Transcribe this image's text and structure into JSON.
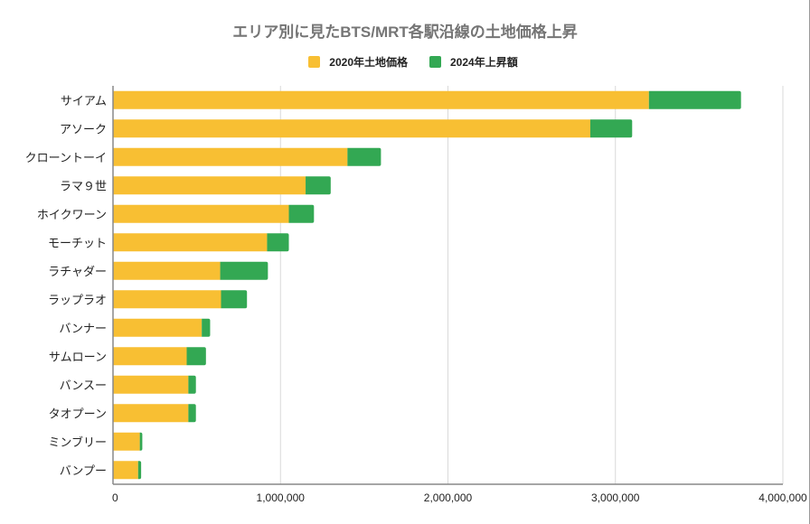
{
  "colors": {
    "series_2020": "#F8BF33",
    "series_increase": "#33A853",
    "title": "#757575",
    "grid": "#d9d9d9",
    "axis": "#888888"
  },
  "chart_data": {
    "type": "bar",
    "orientation": "horizontal",
    "stacked": true,
    "title": "エリア別に見たBTS/MRT各駅沿線の土地価格上昇",
    "xlabel": "",
    "ylabel": "",
    "legend_position": "top",
    "grid": true,
    "xlim": [
      0,
      4000000
    ],
    "x_ticks": [
      0,
      1000000,
      2000000,
      3000000,
      4000000
    ],
    "x_tick_labels": [
      "0",
      "1,000,000",
      "2,000,000",
      "3,000,000",
      "4,000,000"
    ],
    "categories": [
      "サイアム",
      "アソーク",
      "クローントーイ",
      "ラマ９世",
      "ホイクワーン",
      "モーチット",
      "ラチャダー",
      "ラップラオ",
      "バンナー",
      "サムローン",
      "バンスー",
      "タオプーン",
      "ミンブリー",
      "バンプー"
    ],
    "series": [
      {
        "name": "2020年土地価格",
        "values": [
          3200000,
          2850000,
          1400000,
          1150000,
          1050000,
          920000,
          640000,
          645000,
          530000,
          440000,
          450000,
          450000,
          160000,
          150000
        ]
      },
      {
        "name": "2024年上昇額",
        "values": [
          550000,
          250000,
          200000,
          150000,
          150000,
          130000,
          285000,
          155000,
          50000,
          115000,
          45000,
          45000,
          15000,
          18000
        ]
      }
    ]
  }
}
